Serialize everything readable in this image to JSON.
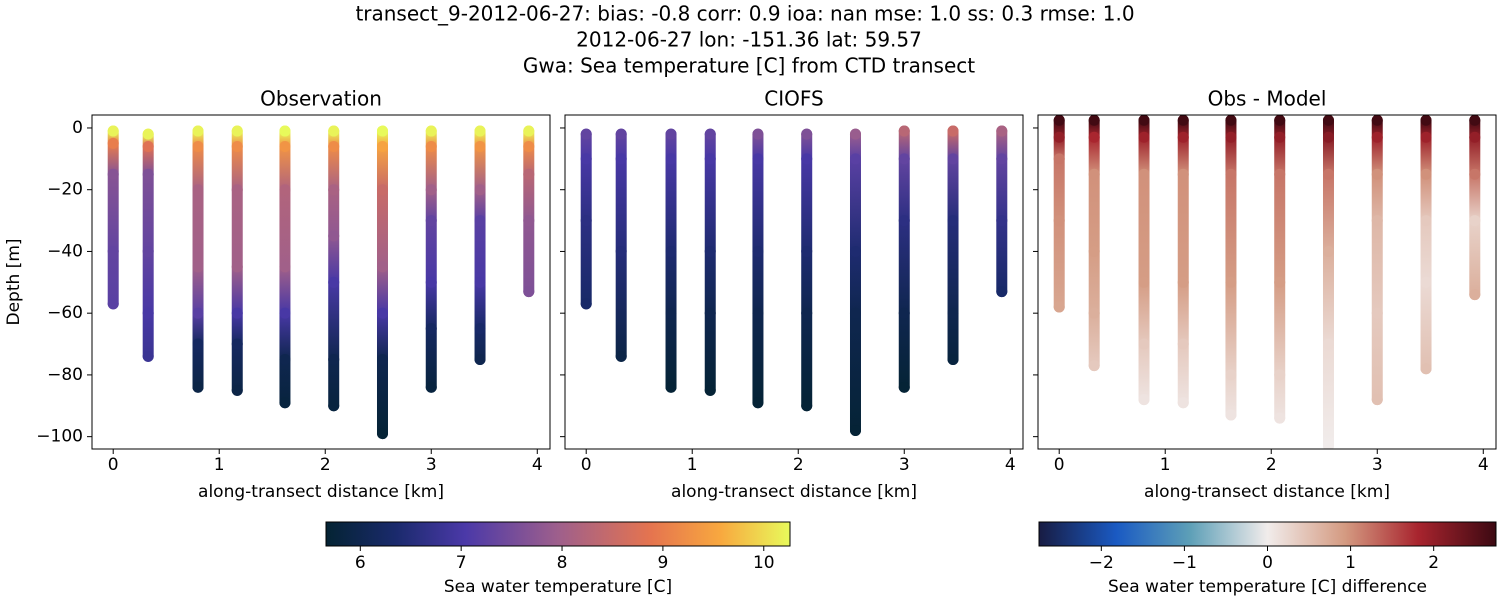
{
  "chart_data": {
    "type": "scatter",
    "title": [
      "transect_9-2012-06-27: bias: -0.8  corr: 0.9  ioa: nan  mse: 1.0  ss: 0.3  rmse: 1.0",
      "2012-06-27 lon: -151.36 lat: 59.57",
      "Gwa: Sea temperature [C] from CTD transect"
    ],
    "xlabel": "along-transect distance [km]",
    "ylabel": "Depth [m]",
    "xlim": [
      -0.2,
      4.12
    ],
    "xticks": [
      0,
      1,
      2,
      3,
      4
    ],
    "ylim": [
      -104,
      4.2
    ],
    "yticks": [
      0,
      {
        "value": -20,
        "label": "−20"
      },
      {
        "value": -40,
        "label": "−40"
      },
      {
        "value": -60,
        "label": "−60"
      },
      {
        "value": -80,
        "label": "−80"
      },
      {
        "value": -100,
        "label": "−100"
      }
    ],
    "x": [
      0,
      0.33,
      0.8,
      1.17,
      1.62,
      2.08,
      2.54,
      3.0,
      3.46,
      3.92
    ],
    "colorbars": [
      {
        "label": "Sea water temperature [C]",
        "lim": [
          5.66,
          10.26
        ],
        "ticks": [
          6,
          7,
          8,
          9,
          10
        ],
        "cmap": [
          [
            0,
            "#042333"
          ],
          [
            0.15,
            "#1a2a6c"
          ],
          [
            0.3,
            "#4b39a8"
          ],
          [
            0.5,
            "#9e5f8c"
          ],
          [
            0.7,
            "#e5744f"
          ],
          [
            0.85,
            "#f8a83f"
          ],
          [
            1,
            "#e8fa5b"
          ]
        ]
      },
      {
        "label": "Sea water temperature [C] difference",
        "lim": [
          -2.75,
          2.75
        ],
        "ticks": [
          {
            "value": -2,
            "label": "−2"
          },
          {
            "value": -1,
            "label": "−1"
          },
          0,
          1,
          2
        ],
        "cmap": [
          [
            0,
            "#181c43"
          ],
          [
            0.17,
            "#1a5ac3"
          ],
          [
            0.33,
            "#5d9fb7"
          ],
          [
            0.5,
            "#f1eceb"
          ],
          [
            0.67,
            "#d49a81"
          ],
          [
            0.83,
            "#a8242e"
          ],
          [
            1,
            "#3c0912"
          ]
        ]
      }
    ],
    "panels": [
      {
        "title": "Observation",
        "colorbar": 0,
        "depths": [
          [
            -1,
            -5,
            -15,
            -40,
            -57
          ],
          [
            -2,
            -6,
            -15,
            -40,
            -60,
            -74
          ],
          [
            -1,
            -6,
            -20,
            -45,
            -60,
            -70,
            -84
          ],
          [
            -1,
            -6,
            -20,
            -45,
            -60,
            -70,
            -85
          ],
          [
            -1,
            -6,
            -20,
            -45,
            -60,
            -75,
            -89
          ],
          [
            -1,
            -6,
            -20,
            -35,
            -50,
            -75,
            -90
          ],
          [
            -1,
            -6,
            -20,
            -45,
            -60,
            -75,
            -99
          ],
          [
            -1,
            -6,
            -20,
            -30,
            -50,
            -65,
            -84
          ],
          [
            -1,
            -6,
            -20,
            -30,
            -50,
            -65,
            -75
          ],
          [
            -1,
            -6,
            -15,
            -30,
            -53
          ]
        ],
        "values": [
          [
            10.2,
            9.0,
            7.7,
            7.3,
            7.2
          ],
          [
            10.2,
            8.8,
            7.6,
            7.3,
            7.0,
            6.8
          ],
          [
            10.2,
            9.2,
            8.1,
            8.0,
            7.2,
            6.2,
            5.9
          ],
          [
            10.2,
            9.2,
            8.1,
            8.0,
            7.0,
            6.2,
            5.9
          ],
          [
            10.3,
            9.3,
            8.2,
            8.0,
            7.0,
            6.0,
            5.8
          ],
          [
            10.2,
            9.2,
            8.1,
            7.8,
            7.0,
            6.0,
            5.8
          ],
          [
            10.3,
            9.5,
            8.5,
            8.0,
            7.0,
            6.0,
            5.7
          ],
          [
            10.2,
            9.2,
            8.0,
            7.3,
            7.0,
            6.2,
            5.8
          ],
          [
            10.2,
            9.3,
            8.0,
            7.2,
            7.0,
            6.3,
            6.0
          ],
          [
            10.2,
            9.2,
            8.3,
            7.8,
            7.6
          ]
        ]
      },
      {
        "title": "CIOFS",
        "colorbar": 0,
        "depths": [
          [
            -2,
            -10,
            -30,
            -57
          ],
          [
            -2,
            -10,
            -40,
            -74
          ],
          [
            -2,
            -10,
            -40,
            -60,
            -84
          ],
          [
            -2,
            -10,
            -40,
            -60,
            -85
          ],
          [
            -2,
            -10,
            -40,
            -60,
            -89
          ],
          [
            -2,
            -10,
            -40,
            -60,
            -90
          ],
          [
            -2,
            -10,
            -40,
            -60,
            -98
          ],
          [
            -1,
            -10,
            -30,
            -60,
            -84
          ],
          [
            -1,
            -10,
            -30,
            -60,
            -75
          ],
          [
            -1,
            -10,
            -30,
            -53
          ]
        ],
        "values": [
          [
            7.3,
            7.0,
            6.6,
            6.3
          ],
          [
            7.3,
            7.0,
            6.5,
            5.9
          ],
          [
            7.3,
            7.0,
            6.4,
            6.0,
            5.7
          ],
          [
            7.3,
            7.0,
            6.4,
            6.0,
            5.7
          ],
          [
            7.6,
            7.0,
            6.4,
            6.0,
            5.7
          ],
          [
            7.6,
            7.0,
            6.4,
            6.0,
            5.7
          ],
          [
            7.9,
            7.2,
            6.4,
            6.0,
            5.7
          ],
          [
            8.3,
            7.3,
            6.6,
            6.0,
            5.7
          ],
          [
            8.5,
            7.3,
            6.5,
            6.0,
            5.8
          ],
          [
            8.1,
            7.3,
            6.7,
            6.3
          ]
        ]
      },
      {
        "title": "Obs - Model",
        "colorbar": 1,
        "depths": [
          [
            2.5,
            -3,
            -10,
            -30,
            -58
          ],
          [
            2.5,
            -3,
            -15,
            -40,
            -60,
            -77
          ],
          [
            2.5,
            -3,
            -15,
            -50,
            -70,
            -88
          ],
          [
            2.5,
            -3,
            -15,
            -50,
            -70,
            -89
          ],
          [
            2.5,
            -3,
            -15,
            -50,
            -80,
            -93
          ],
          [
            2.5,
            -3,
            -15,
            -50,
            -80,
            -94
          ],
          [
            2.5,
            -3,
            -15,
            -40,
            -70,
            -103
          ],
          [
            2.5,
            -3,
            -15,
            -30,
            -60,
            -88
          ],
          [
            2.5,
            -3,
            -15,
            -30,
            -50,
            -78
          ],
          [
            2.5,
            -3,
            -15,
            -30,
            -54
          ]
        ],
        "values": [
          [
            2.7,
            2.0,
            1.2,
            1.0,
            0.8
          ],
          [
            2.7,
            1.8,
            1.0,
            0.9,
            0.7,
            0.4
          ],
          [
            2.7,
            1.9,
            1.0,
            0.9,
            0.4,
            0.1
          ],
          [
            2.7,
            1.9,
            1.0,
            0.9,
            0.4,
            0.1
          ],
          [
            2.7,
            2.0,
            1.2,
            0.9,
            0.3,
            0.1
          ],
          [
            2.7,
            2.0,
            1.2,
            0.9,
            0.3,
            0.1
          ],
          [
            2.7,
            2.1,
            1.2,
            0.7,
            0.2,
            0.0
          ],
          [
            2.7,
            1.9,
            1.0,
            0.6,
            0.4,
            0.5
          ],
          [
            2.7,
            1.9,
            1.0,
            0.4,
            0.2,
            0.5
          ],
          [
            2.7,
            2.0,
            1.2,
            0.3,
            0.7
          ]
        ]
      }
    ]
  }
}
